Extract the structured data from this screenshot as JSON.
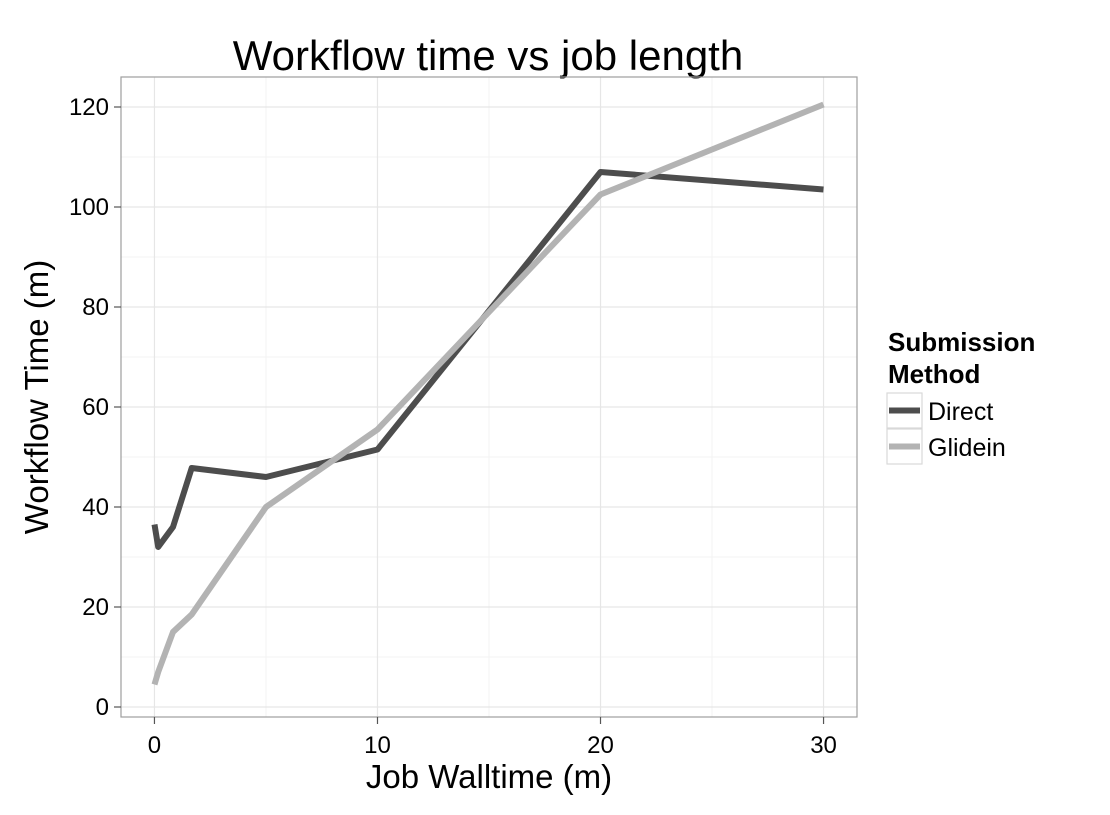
{
  "chart_data": {
    "type": "line",
    "title": "Workflow time vs job length",
    "xlabel": "Job Walltime (m)",
    "ylabel": "Workflow Time (m)",
    "xlim": [
      -1.5,
      31.5
    ],
    "ylim": [
      -2,
      126
    ],
    "x_ticks": [
      0,
      10,
      20,
      30
    ],
    "y_ticks": [
      0,
      20,
      40,
      60,
      80,
      100,
      120
    ],
    "grid": true,
    "legend": {
      "title": "Submission Method",
      "title_lines": [
        "Submission",
        "Method"
      ],
      "placement": "right"
    },
    "series": [
      {
        "name": "Direct",
        "color": "#4d4d4d",
        "points": [
          [
            0,
            36.5
          ],
          [
            0.17,
            32
          ],
          [
            0.83,
            36
          ],
          [
            1.67,
            47.8
          ],
          [
            5,
            46
          ],
          [
            10,
            51.5
          ],
          [
            20,
            107
          ],
          [
            30,
            103.5
          ]
        ]
      },
      {
        "name": "Glidein",
        "color": "#b3b3b3",
        "points": [
          [
            0,
            4.5
          ],
          [
            0.17,
            7
          ],
          [
            0.83,
            15
          ],
          [
            1.67,
            18.5
          ],
          [
            5,
            40
          ],
          [
            10,
            55.5
          ],
          [
            20,
            102.5
          ],
          [
            30,
            120.5
          ]
        ]
      }
    ]
  }
}
